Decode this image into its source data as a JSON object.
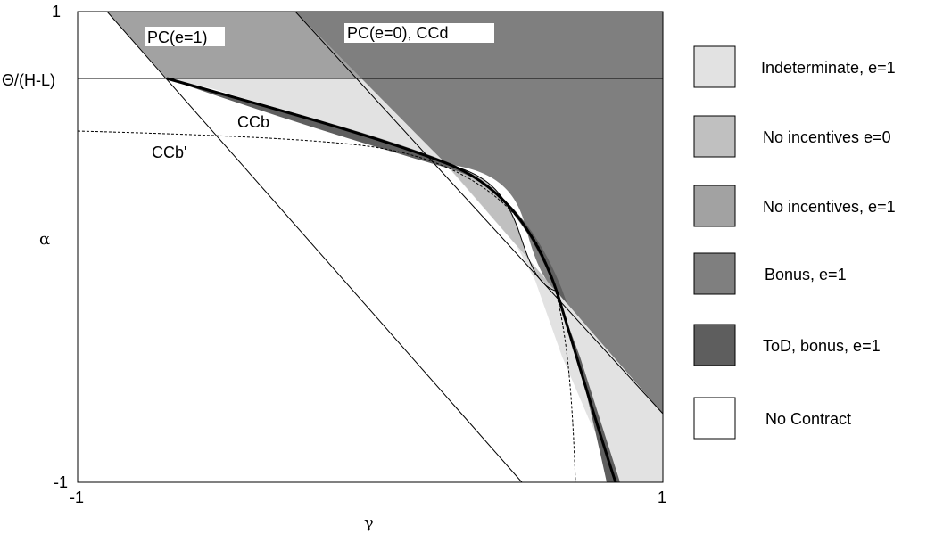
{
  "axes": {
    "x_symbol": "γ",
    "y_symbol": "α",
    "x_min_label": "-1",
    "x_max_label": "1",
    "y_min_label": "-1",
    "y_max_label": "1",
    "y_threshold_label": "Θ/(H-L)"
  },
  "curve_labels": {
    "pc_e1": "PC(e=1)",
    "pc_e0_ccd": "PC(e=0), CCd",
    "ccb": "CCb",
    "ccb_prime": "CCb'"
  },
  "legend": [
    {
      "label": "Indeterminate, e=1",
      "color": "#e2e2e2"
    },
    {
      "label": "No incentives e=0",
      "color": "#c0c0c0"
    },
    {
      "label": "No incentives, e=1",
      "color": "#a2a2a2"
    },
    {
      "label": "Bonus, e=1",
      "color": "#7f7f7f"
    },
    {
      "label": "ToD, bonus, e=1",
      "color": "#5e5e5e"
    },
    {
      "label": "No Contract",
      "color": "#ffffff"
    }
  ]
}
